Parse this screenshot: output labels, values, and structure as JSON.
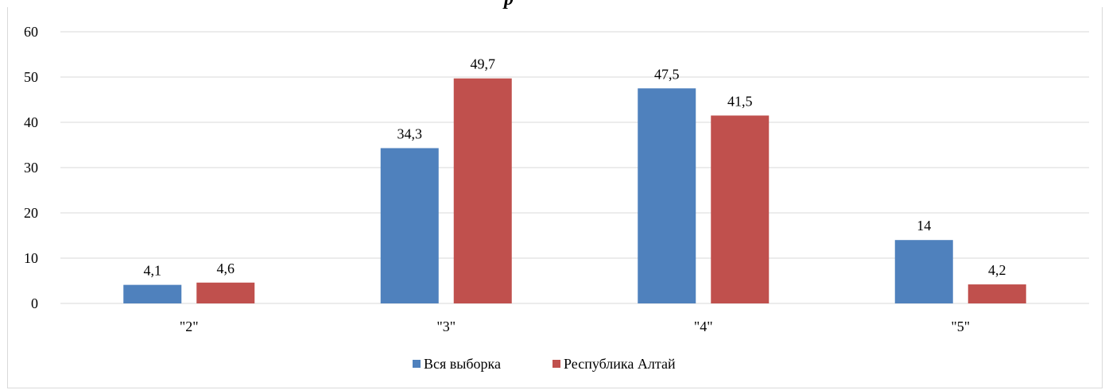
{
  "chart_data": {
    "type": "bar",
    "title_visible_fragment": "р",
    "categories": [
      "\"2\"",
      "\"3\"",
      "\"4\"",
      "\"5\""
    ],
    "series": [
      {
        "name": "Вся выборка",
        "color": "#4f81bd",
        "values": [
          4.1,
          34.3,
          47.5,
          14
        ],
        "labels": [
          "4,1",
          "34,3",
          "47,5",
          "14"
        ]
      },
      {
        "name": "Республика Алтай",
        "color": "#c0504d",
        "values": [
          4.6,
          49.7,
          41.5,
          4.2
        ],
        "labels": [
          "4,6",
          "49,7",
          "41,5",
          "4,2"
        ]
      }
    ],
    "ylim": [
      0,
      60
    ],
    "yticks": [
      0,
      10,
      20,
      30,
      40,
      50,
      60
    ],
    "grid": true,
    "legend_position": "bottom"
  }
}
